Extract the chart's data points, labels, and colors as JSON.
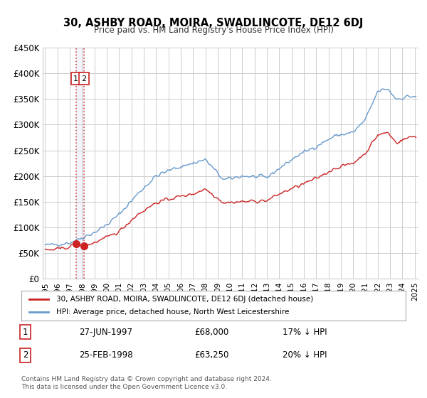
{
  "title": "30, ASHBY ROAD, MOIRA, SWADLINCOTE, DE12 6DJ",
  "subtitle": "Price paid vs. HM Land Registry's House Price Index (HPI)",
  "xlabel": "",
  "ylabel": "",
  "ylim": [
    0,
    450000
  ],
  "yticks": [
    0,
    50000,
    100000,
    150000,
    200000,
    250000,
    300000,
    350000,
    400000,
    450000
  ],
  "ytick_labels": [
    "£0",
    "£50K",
    "£100K",
    "£150K",
    "£200K",
    "£250K",
    "£300K",
    "£350K",
    "£400K",
    "£450K"
  ],
  "xtick_years": [
    1995,
    1996,
    1997,
    1998,
    1999,
    2000,
    2001,
    2002,
    2003,
    2004,
    2005,
    2006,
    2007,
    2008,
    2009,
    2010,
    2011,
    2012,
    2013,
    2014,
    2015,
    2016,
    2017,
    2018,
    2019,
    2020,
    2021,
    2022,
    2023,
    2024,
    2025
  ],
  "hpi_color": "#6699cc",
  "price_color": "#cc2222",
  "dot_color": "#cc2222",
  "background_color": "#ffffff",
  "grid_color": "#cccccc",
  "legend_box_color": "#dddddd",
  "sale1_date": 1997.49,
  "sale1_price": 68000,
  "sale1_label": "27-JUN-1997",
  "sale1_hpi_pct": "17% ↓ HPI",
  "sale2_date": 1998.15,
  "sale2_price": 63250,
  "sale2_label": "25-FEB-1998",
  "sale2_hpi_pct": "20% ↓ HPI",
  "legend1_text": "30, ASHBY ROAD, MOIRA, SWADLINCOTE, DE12 6DJ (detached house)",
  "legend2_text": "HPI: Average price, detached house, North West Leicestershire",
  "footer_text": "Contains HM Land Registry data © Crown copyright and database right 2024.\nThis data is licensed under the Open Government Licence v3.0.",
  "table_row1": [
    "1",
    "27-JUN-1997",
    "£68,000",
    "17% ↓ HPI"
  ],
  "table_row2": [
    "2",
    "25-FEB-1998",
    "£63,250",
    "20% ↓ HPI"
  ]
}
